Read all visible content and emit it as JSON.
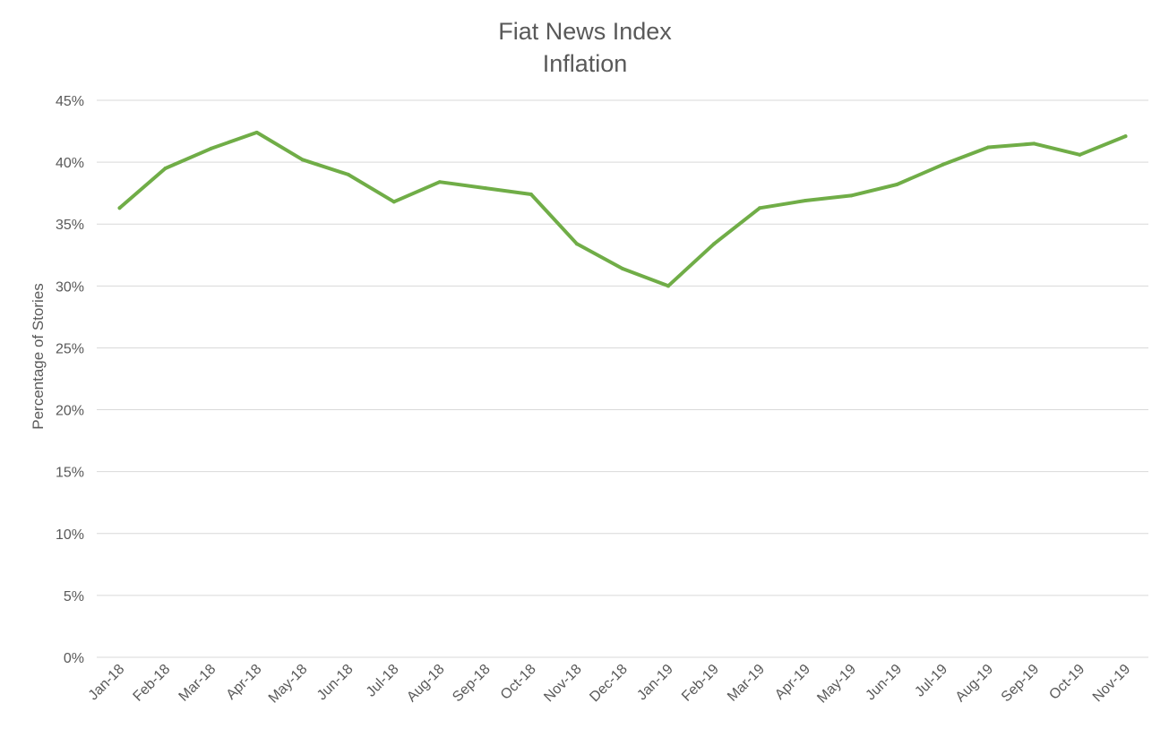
{
  "chart_data": {
    "type": "line",
    "title": "Fiat News Index",
    "subtitle": "Inflation",
    "xlabel": "",
    "ylabel": "Percentage of Stories",
    "ylim": [
      0,
      45
    ],
    "y_ticks": [
      "0%",
      "5%",
      "10%",
      "15%",
      "20%",
      "25%",
      "30%",
      "35%",
      "40%",
      "45%"
    ],
    "grid": true,
    "legend": "none",
    "categories": [
      "Jan-18",
      "Feb-18",
      "Mar-18",
      "Apr-18",
      "May-18",
      "Jun-18",
      "Jul-18",
      "Aug-18",
      "Sep-18",
      "Oct-18",
      "Nov-18",
      "Dec-18",
      "Jan-19",
      "Feb-19",
      "Mar-19",
      "Apr-19",
      "May-19",
      "Jun-19",
      "Jul-19",
      "Aug-19",
      "Sep-19",
      "Oct-19",
      "Nov-19"
    ],
    "series": [
      {
        "color": "#70ad47",
        "values": [
          36.3,
          39.5,
          41.1,
          42.4,
          40.2,
          39.0,
          36.8,
          38.4,
          37.9,
          37.4,
          33.4,
          31.4,
          30.0,
          33.4,
          36.3,
          36.9,
          37.3,
          38.2,
          39.8,
          41.2,
          41.5,
          40.6,
          42.1
        ]
      }
    ]
  }
}
